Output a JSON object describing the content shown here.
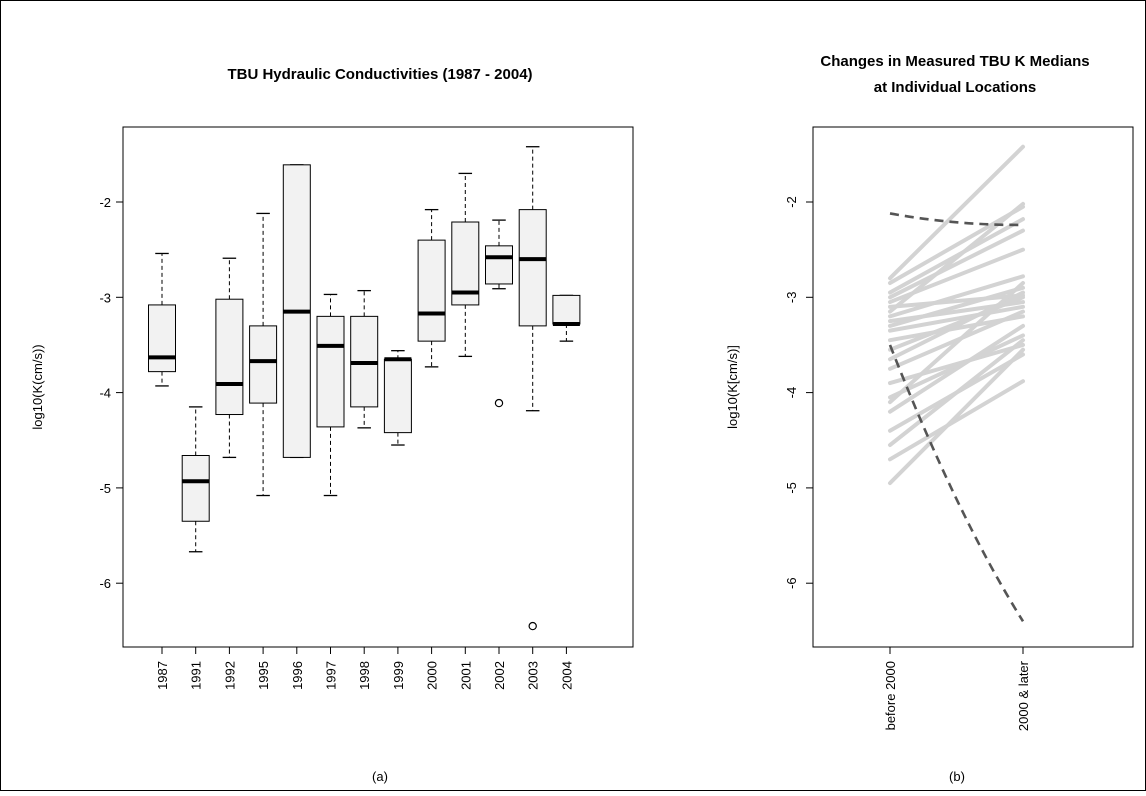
{
  "chart_data": [
    {
      "type": "box",
      "title": "TBU Hydraulic Conductivities (1987 - 2004)",
      "ylabel": "log10(K(cm/s))",
      "caption": "(a)",
      "categories": [
        "1987",
        "1991",
        "1992",
        "1995",
        "1996",
        "1997",
        "1998",
        "1999",
        "2000",
        "2001",
        "2002",
        "2003",
        "2004"
      ],
      "y_ticks": [
        "-2",
        "-3",
        "-4",
        "-5",
        "-6"
      ],
      "ylim": [
        -6.7,
        -1.3
      ],
      "boxes": [
        {
          "x": "1987",
          "whisker_low": -3.93,
          "q1": -3.78,
          "median": -3.63,
          "q3": -3.08,
          "whisker_high": -2.54,
          "outliers": []
        },
        {
          "x": "1991",
          "whisker_low": -5.67,
          "q1": -5.35,
          "median": -4.93,
          "q3": -4.66,
          "whisker_high": -4.15,
          "outliers": []
        },
        {
          "x": "1992",
          "whisker_low": -4.68,
          "q1": -4.23,
          "median": -3.91,
          "q3": -3.02,
          "whisker_high": -2.59,
          "outliers": []
        },
        {
          "x": "1995",
          "whisker_low": -5.08,
          "q1": -4.11,
          "median": -3.67,
          "q3": -3.3,
          "whisker_high": -2.12,
          "outliers": []
        },
        {
          "x": "1996",
          "whisker_low": -4.68,
          "q1": -4.68,
          "median": -3.15,
          "q3": -1.61,
          "whisker_high": -1.61,
          "outliers": []
        },
        {
          "x": "1997",
          "whisker_low": -5.08,
          "q1": -4.36,
          "median": -3.51,
          "q3": -3.2,
          "whisker_high": -2.97,
          "outliers": []
        },
        {
          "x": "1998",
          "whisker_low": -4.37,
          "q1": -4.15,
          "median": -3.69,
          "q3": -3.2,
          "whisker_high": -2.93,
          "outliers": []
        },
        {
          "x": "1999",
          "whisker_low": -4.55,
          "q1": -4.42,
          "median": -3.65,
          "q3": -3.65,
          "whisker_high": -3.56,
          "outliers": []
        },
        {
          "x": "2000",
          "whisker_low": -3.73,
          "q1": -3.46,
          "median": -3.17,
          "q3": -2.4,
          "whisker_high": -2.08,
          "outliers": []
        },
        {
          "x": "2001",
          "whisker_low": -3.62,
          "q1": -3.08,
          "median": -2.95,
          "q3": -2.21,
          "whisker_high": -1.7,
          "outliers": []
        },
        {
          "x": "2002",
          "whisker_low": -2.91,
          "q1": -2.86,
          "median": -2.58,
          "q3": -2.46,
          "whisker_high": -2.19,
          "outliers": [
            -4.11
          ]
        },
        {
          "x": "2003",
          "whisker_low": -4.19,
          "q1": -3.3,
          "median": -2.6,
          "q3": -2.08,
          "whisker_high": -1.42,
          "outliers": [
            -6.45
          ]
        },
        {
          "x": "2004",
          "whisker_low": -3.46,
          "q1": -3.28,
          "median": -3.28,
          "q3": -2.98,
          "whisker_high": -2.98,
          "outliers": []
        }
      ],
      "box_fill": "#f2f2f2",
      "grid": false
    },
    {
      "type": "line",
      "title": "Changes in Measured TBU K Medians at Individual Locations",
      "title_lines": [
        "Changes in Measured TBU K Medians",
        "at Individual Locations"
      ],
      "ylabel": "log10(K[cm/s)]",
      "caption": "(b)",
      "categories": [
        "before 2000",
        "2000 & later"
      ],
      "y_ticks": [
        "-2",
        "-3",
        "-4",
        "-5",
        "-6"
      ],
      "ylim": [
        -6.7,
        -1.3
      ],
      "light_color": "#d3d3d3",
      "dashed_color": "#555555",
      "series": [
        {
          "values": [
            -2.8,
            -1.42
          ]
        },
        {
          "values": [
            -2.85,
            -2.05
          ]
        },
        {
          "values": [
            -2.95,
            -2.18
          ]
        },
        {
          "values": [
            -3.0,
            -2.3
          ]
        },
        {
          "values": [
            -3.05,
            -2.5
          ]
        },
        {
          "values": [
            -3.1,
            -2.98
          ]
        },
        {
          "values": [
            -3.15,
            -2.02
          ]
        },
        {
          "values": [
            -3.2,
            -2.78
          ]
        },
        {
          "values": [
            -3.25,
            -3.05
          ]
        },
        {
          "values": [
            -3.3,
            -2.9
          ]
        },
        {
          "values": [
            -3.35,
            -3.1
          ]
        },
        {
          "values": [
            -3.45,
            -3.2
          ]
        },
        {
          "values": [
            -3.55,
            -3.0
          ]
        },
        {
          "values": [
            -3.65,
            -2.95
          ]
        },
        {
          "values": [
            -3.75,
            -3.15
          ]
        },
        {
          "values": [
            -3.9,
            -3.5
          ]
        },
        {
          "values": [
            -4.05,
            -3.4
          ]
        },
        {
          "values": [
            -4.1,
            -2.85
          ]
        },
        {
          "values": [
            -4.2,
            -3.3
          ]
        },
        {
          "values": [
            -4.4,
            -3.6
          ]
        },
        {
          "values": [
            -4.55,
            -3.45
          ]
        },
        {
          "values": [
            -4.7,
            -3.88
          ]
        },
        {
          "values": [
            -4.95,
            -3.55
          ]
        },
        {
          "values": [
            -2.12,
            -2.24
          ],
          "style": "dashed"
        },
        {
          "values": [
            -3.5,
            -6.4
          ],
          "style": "dashed"
        }
      ]
    }
  ]
}
